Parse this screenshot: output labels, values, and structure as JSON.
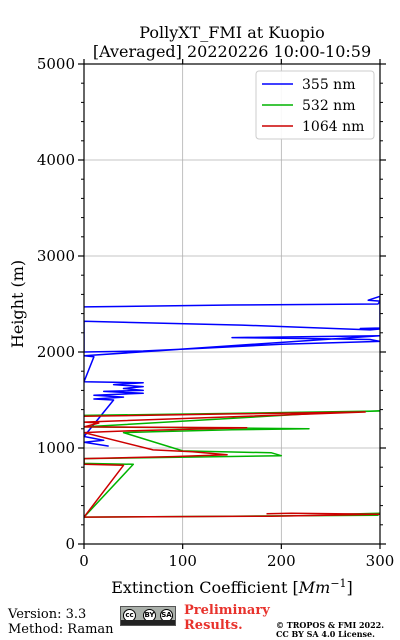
{
  "chart_data": {
    "type": "line",
    "title": "PollyXT_FMI at Kuopio",
    "subtitle": "[Averaged] 20220226 10:00-10:59",
    "xlabel": "Extinction Coefficient [Mm⁻¹]",
    "ylabel": "Height (m)",
    "xlim": [
      0,
      300
    ],
    "ylim": [
      0,
      5000
    ],
    "xticks": [
      "0",
      "100",
      "200",
      "300"
    ],
    "yticks": [
      "0",
      "1000",
      "2000",
      "3000",
      "4000",
      "5000"
    ],
    "grid": true,
    "legend_position": "top-right",
    "series": [
      {
        "name": "355 nm",
        "color": "#0000ff",
        "points": [
          [
            0,
            2470
          ],
          [
            150,
            2490
          ],
          [
            298,
            2500
          ],
          [
            300,
            2530
          ],
          [
            288,
            2540
          ],
          [
            300,
            2580
          ],
          [
            300,
            2250
          ],
          [
            280,
            2245
          ],
          [
            300,
            2240
          ],
          [
            290,
            2230
          ],
          [
            160,
            2280
          ],
          [
            0,
            2320
          ],
          [
            0,
            2000
          ],
          [
            60,
            2010
          ],
          [
            120,
            2040
          ],
          [
            200,
            2080
          ],
          [
            300,
            2110
          ],
          [
            290,
            2130
          ],
          [
            230,
            2140
          ],
          [
            150,
            2150
          ],
          [
            300,
            2170
          ],
          [
            0,
            1960
          ],
          [
            10,
            1950
          ],
          [
            0,
            1690
          ],
          [
            60,
            1680
          ],
          [
            30,
            1660
          ],
          [
            60,
            1640
          ],
          [
            40,
            1620
          ],
          [
            60,
            1600
          ],
          [
            20,
            1590
          ],
          [
            60,
            1570
          ],
          [
            10,
            1550
          ],
          [
            40,
            1530
          ],
          [
            10,
            1510
          ],
          [
            30,
            1500
          ],
          [
            0,
            1120
          ],
          [
            10,
            1100
          ],
          [
            20,
            1080
          ],
          [
            0,
            1060
          ],
          [
            25,
            1020
          ]
        ]
      },
      {
        "name": "532 nm",
        "color": "#00b400",
        "points": [
          [
            0,
            1340
          ],
          [
            150,
            1360
          ],
          [
            300,
            1385
          ],
          [
            260,
            1375
          ],
          [
            0,
            1220
          ],
          [
            120,
            1210
          ],
          [
            228,
            1200
          ],
          [
            150,
            1190
          ],
          [
            70,
            1170
          ],
          [
            40,
            1160
          ],
          [
            100,
            970
          ],
          [
            190,
            950
          ],
          [
            200,
            920
          ],
          [
            140,
            910
          ],
          [
            0,
            890
          ],
          [
            0,
            840
          ],
          [
            50,
            830
          ],
          [
            0,
            280
          ],
          [
            150,
            290
          ],
          [
            298,
            300
          ],
          [
            260,
            310
          ],
          [
            300,
            320
          ]
        ]
      },
      {
        "name": "1064 nm",
        "color": "#cc0000",
        "points": [
          [
            0,
            1330
          ],
          [
            150,
            1355
          ],
          [
            285,
            1375
          ],
          [
            0,
            1270
          ],
          [
            15,
            1260
          ],
          [
            0,
            1220
          ],
          [
            165,
            1210
          ],
          [
            50,
            1180
          ],
          [
            20,
            1170
          ],
          [
            0,
            1160
          ],
          [
            70,
            980
          ],
          [
            110,
            960
          ],
          [
            145,
            930
          ],
          [
            90,
            910
          ],
          [
            0,
            890
          ],
          [
            0,
            830
          ],
          [
            40,
            820
          ],
          [
            0,
            280
          ],
          [
            190,
            290
          ],
          [
            300,
            310
          ],
          [
            210,
            320
          ],
          [
            185,
            315
          ]
        ]
      }
    ]
  },
  "footer": {
    "version": "Version: 3.3",
    "method": "Method: Raman",
    "preliminary_line1": "Preliminary",
    "preliminary_line2": "Results.",
    "copyright_line1": "© TROPOS & FMI 2022.",
    "copyright_line2": "CC BY SA 4.0 License."
  },
  "license_badge": {
    "icons": [
      "cc-icon",
      "by-icon",
      "sa-icon"
    ],
    "labels": [
      "cc",
      "BY",
      "SA"
    ]
  }
}
